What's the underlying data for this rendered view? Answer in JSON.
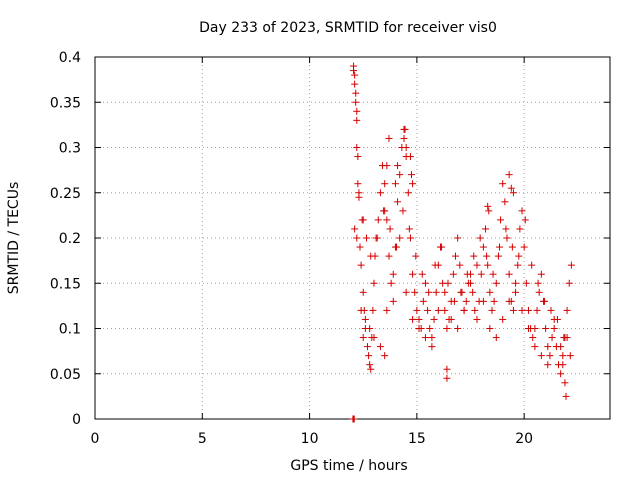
{
  "chart_data": {
    "type": "scatter",
    "title": "Day 233 of 2023, SRMTID for receiver vis0",
    "xlabel": "GPS time / hours",
    "ylabel": "SRMTID / TECUs",
    "xlim": [
      0,
      24
    ],
    "ylim": [
      0,
      0.4
    ],
    "x_ticks": [
      0,
      5,
      10,
      15,
      20
    ],
    "x_tick_labels": [
      "0",
      "5",
      "10",
      "15",
      "20"
    ],
    "y_ticks": [
      0,
      0.05,
      0.1,
      0.15,
      0.2,
      0.25,
      0.3,
      0.35,
      0.4
    ],
    "y_tick_labels": [
      "0",
      "0.05",
      "0.1",
      "0.15",
      "0.2",
      "0.25",
      "0.3",
      "0.35",
      "0.4"
    ],
    "grid": true,
    "marker": "+",
    "point_color": "#d40000",
    "series": [
      {
        "name": "vis0",
        "x": [
          12.05,
          12.05,
          12.1,
          12.1,
          12.15,
          12.15,
          12.2,
          12.2,
          12.2,
          12.25,
          12.25,
          12.3,
          12.3,
          12.1,
          12.2,
          12.35,
          12.4,
          12.5,
          12.55,
          12.6,
          12.7,
          12.75,
          12.8,
          12.85,
          12.9,
          12.95,
          13.0,
          13.05,
          13.1,
          13.2,
          13.3,
          13.4,
          13.5,
          13.6,
          13.7,
          13.8,
          13.9,
          14.0,
          14.1,
          14.2,
          14.3,
          14.4,
          14.5,
          14.6,
          14.7,
          14.8,
          14.9,
          15.0,
          15.1,
          15.2,
          15.3,
          15.4,
          15.5,
          15.6,
          15.7,
          15.8,
          15.9,
          16.0,
          16.1,
          16.2,
          16.3,
          16.4,
          16.5,
          16.6,
          16.7,
          16.8,
          16.9,
          17.0,
          17.1,
          17.2,
          17.3,
          17.4,
          17.5,
          17.6,
          17.7,
          17.8,
          17.9,
          18.0,
          18.1,
          18.2,
          18.3,
          18.4,
          18.5,
          18.6,
          18.7,
          18.8,
          18.9,
          19.0,
          19.1,
          19.2,
          19.3,
          19.4,
          19.5,
          19.6,
          19.7,
          19.8,
          19.9,
          20.0,
          20.1,
          20.2,
          20.3,
          20.4,
          20.5,
          20.6,
          20.7,
          20.8,
          20.9,
          21.0,
          21.1,
          21.2,
          21.3,
          21.4,
          21.5,
          21.6,
          21.7,
          21.8,
          21.9,
          22.0,
          22.1,
          22.2,
          12.4,
          12.6,
          12.8,
          13.0,
          13.3,
          13.6,
          13.9,
          14.2,
          14.5,
          14.8,
          15.1,
          15.4,
          15.7,
          16.0,
          16.3,
          16.6,
          16.9,
          17.2,
          17.5,
          17.8,
          18.1,
          18.4,
          18.7,
          19.0,
          19.3,
          19.6,
          19.9,
          20.2,
          20.5,
          20.8,
          21.1,
          21.4,
          21.7,
          22.0,
          12.45,
          12.65,
          12.85,
          13.15,
          13.45,
          13.75,
          14.05,
          14.35,
          14.65,
          14.95,
          15.25,
          15.55,
          15.85,
          16.15,
          16.45,
          16.75,
          17.05,
          17.35,
          17.65,
          17.95,
          18.25,
          18.55,
          18.85,
          19.15,
          19.45,
          19.75,
          20.05,
          20.35,
          20.65,
          20.95,
          21.25,
          21.55,
          21.85,
          22.15,
          13.6,
          13.7,
          14.0,
          14.1,
          14.4,
          14.45,
          14.5,
          14.7,
          14.75,
          14.8,
          19.3,
          19.4,
          19.5,
          18.3,
          18.35,
          12.5,
          12.5,
          13.5,
          13.5,
          16.4,
          16.4,
          21.95,
          21.9,
          21.8,
          12.02,
          12.05,
          12.08
        ],
        "y": [
          0.39,
          0.385,
          0.38,
          0.37,
          0.36,
          0.35,
          0.34,
          0.33,
          0.3,
          0.29,
          0.26,
          0.25,
          0.245,
          0.21,
          0.2,
          0.19,
          0.17,
          0.14,
          0.12,
          0.1,
          0.08,
          0.07,
          0.06,
          0.055,
          0.09,
          0.12,
          0.15,
          0.18,
          0.2,
          0.22,
          0.25,
          0.28,
          0.26,
          0.22,
          0.18,
          0.15,
          0.13,
          0.19,
          0.24,
          0.27,
          0.3,
          0.32,
          0.29,
          0.25,
          0.2,
          0.16,
          0.14,
          0.12,
          0.11,
          0.1,
          0.13,
          0.15,
          0.12,
          0.1,
          0.09,
          0.11,
          0.14,
          0.17,
          0.19,
          0.15,
          0.12,
          0.1,
          0.11,
          0.13,
          0.16,
          0.18,
          0.2,
          0.17,
          0.14,
          0.12,
          0.13,
          0.15,
          0.16,
          0.14,
          0.12,
          0.11,
          0.13,
          0.16,
          0.19,
          0.21,
          0.17,
          0.14,
          0.12,
          0.13,
          0.15,
          0.18,
          0.22,
          0.26,
          0.24,
          0.2,
          0.16,
          0.13,
          0.12,
          0.14,
          0.17,
          0.21,
          0.23,
          0.19,
          0.15,
          0.12,
          0.1,
          0.09,
          0.1,
          0.12,
          0.14,
          0.16,
          0.13,
          0.1,
          0.08,
          0.07,
          0.09,
          0.11,
          0.08,
          0.06,
          0.05,
          0.07,
          0.09,
          0.12,
          0.15,
          0.17,
          0.12,
          0.11,
          0.1,
          0.09,
          0.08,
          0.12,
          0.16,
          0.2,
          0.14,
          0.11,
          0.1,
          0.09,
          0.08,
          0.12,
          0.14,
          0.11,
          0.1,
          0.12,
          0.15,
          0.17,
          0.13,
          0.1,
          0.09,
          0.11,
          0.13,
          0.15,
          0.12,
          0.1,
          0.08,
          0.07,
          0.06,
          0.1,
          0.08,
          0.09,
          0.22,
          0.2,
          0.18,
          0.2,
          0.23,
          0.21,
          0.19,
          0.23,
          0.21,
          0.18,
          0.16,
          0.14,
          0.17,
          0.19,
          0.15,
          0.13,
          0.14,
          0.16,
          0.18,
          0.2,
          0.18,
          0.16,
          0.19,
          0.21,
          0.19,
          0.18,
          0.22,
          0.17,
          0.15,
          0.13,
          0.12,
          0.11,
          0.09,
          0.07,
          0.28,
          0.31,
          0.26,
          0.28,
          0.31,
          0.32,
          0.3,
          0.29,
          0.27,
          0.26,
          0.27,
          0.255,
          0.25,
          0.235,
          0.23,
          0.09,
          0.22,
          0.07,
          0.23,
          0.045,
          0.055,
          0.025,
          0.04,
          0.06,
          0.0,
          0.0,
          0.0
        ]
      }
    ]
  }
}
